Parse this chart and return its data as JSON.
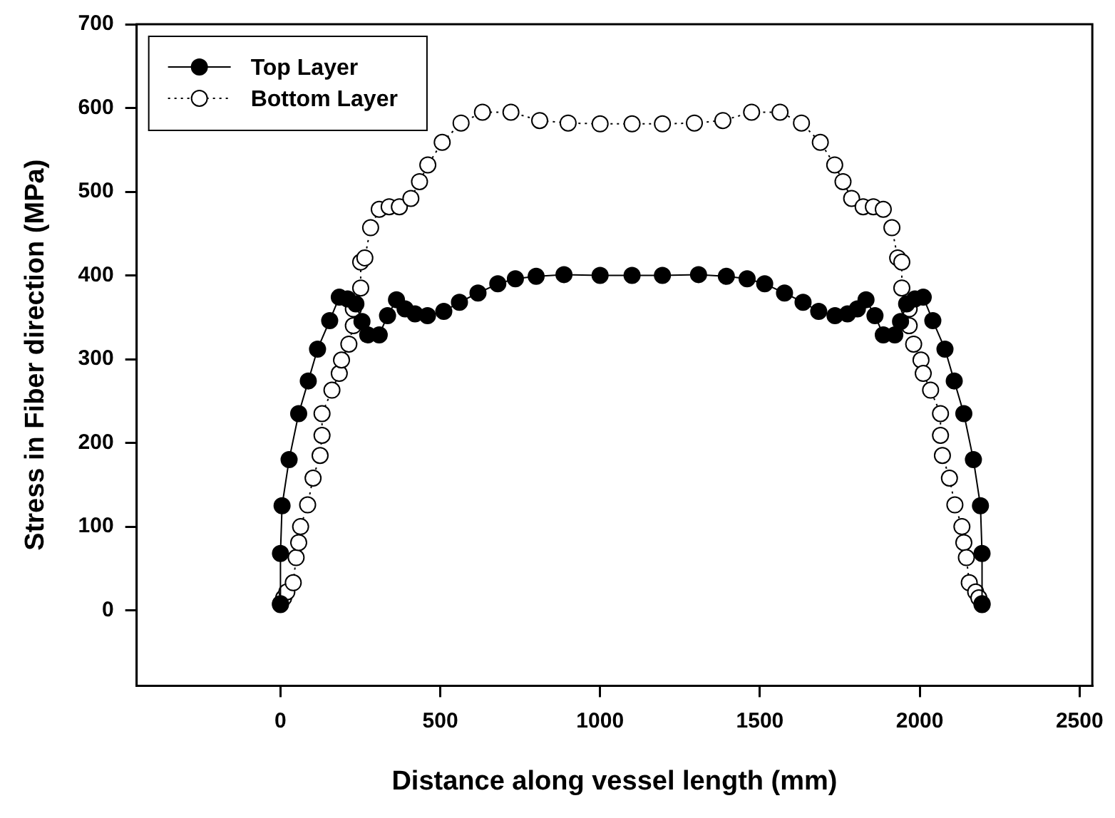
{
  "chart_data": {
    "type": "line",
    "xlabel": "Distance along vessel length (mm)",
    "ylabel": "Stress in Fiber direction (MPa)",
    "xlim": [
      -450,
      2540
    ],
    "xticks": [
      0,
      500,
      1000,
      1500,
      2000,
      2500
    ],
    "ylim": [
      -90,
      700
    ],
    "yticks": [
      0,
      100,
      200,
      300,
      400,
      500,
      600,
      700
    ],
    "grid": false,
    "legend": "top left",
    "marker": "circle",
    "series": [
      {
        "name": "Top Layer",
        "color": "#000000",
        "line_style": "solid",
        "x": [
          0,
          0,
          5,
          27,
          57,
          87,
          116,
          154,
          184,
          210,
          236,
          255,
          273,
          309,
          335,
          363,
          390,
          421,
          460,
          511,
          560,
          618,
          680,
          735,
          800,
          887,
          1000,
          1100,
          1195,
          1308,
          1395,
          1460,
          1515,
          1577,
          1635,
          1684,
          1735,
          1774,
          1805,
          1832,
          1860,
          1886,
          1922,
          1940,
          1959,
          1985,
          2011,
          2041,
          2079,
          2108,
          2138,
          2168,
          2190,
          2195,
          2195
        ],
        "values": [
          8,
          68,
          125,
          180,
          235,
          274,
          312,
          346,
          374,
          372,
          366,
          345,
          329,
          329,
          352,
          371,
          360,
          354,
          352,
          357,
          368,
          379,
          390,
          396,
          399,
          401,
          400,
          400,
          400,
          401,
          399,
          396,
          390,
          379,
          368,
          357,
          352,
          354,
          360,
          371,
          352,
          329,
          329,
          345,
          366,
          372,
          374,
          346,
          312,
          274,
          235,
          180,
          125,
          68,
          8
        ]
      },
      {
        "name": "Bottom Layer",
        "color": "#ffffff",
        "line_style": "dotted",
        "x": [
          0,
          10,
          20,
          40,
          49,
          57,
          63,
          85,
          102,
          124,
          130,
          130,
          161,
          184,
          191,
          214,
          228,
          228,
          251,
          251,
          264,
          282,
          309,
          340,
          372,
          408,
          435,
          461,
          506,
          565,
          632,
          721,
          811,
          900,
          1000,
          1100,
          1195,
          1295,
          1384,
          1474,
          1563,
          1630,
          1689,
          1734,
          1760,
          1787,
          1823,
          1855,
          1886,
          1913,
          1931,
          1944,
          1944,
          1967,
          1967,
          1981,
          2004,
          2011,
          2034,
          2065,
          2065,
          2071,
          2093,
          2110,
          2132,
          2138,
          2146,
          2155,
          2175,
          2185,
          2195
        ],
        "values": [
          7,
          15,
          22,
          33,
          63,
          81,
          100,
          126,
          158,
          185,
          209,
          235,
          263,
          283,
          299,
          318,
          340,
          360,
          385,
          416,
          421,
          457,
          479,
          482,
          482,
          492,
          512,
          532,
          559,
          582,
          595,
          595,
          585,
          582,
          581,
          581,
          581,
          582,
          585,
          595,
          595,
          582,
          559,
          532,
          512,
          492,
          482,
          482,
          479,
          457,
          421,
          416,
          385,
          360,
          340,
          318,
          299,
          283,
          263,
          235,
          209,
          185,
          158,
          126,
          100,
          81,
          63,
          33,
          22,
          15,
          7
        ]
      }
    ]
  }
}
